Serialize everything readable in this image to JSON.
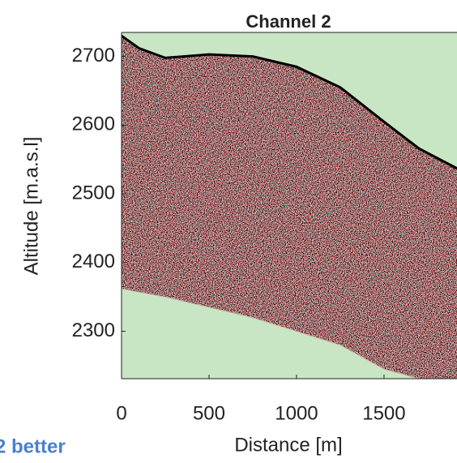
{
  "chart_data": {
    "type": "line",
    "title": "Channel 2",
    "x_label": "Distance [m]",
    "y_label": "Altitude [m.a.s.l]",
    "annotation": "2 better",
    "x": [
      0,
      100,
      250,
      500,
      750,
      1000,
      1250,
      1500,
      1700,
      1917
    ],
    "series": [
      {
        "color": "#000000",
        "values": [
          2730,
          2712,
          2698,
          2703,
          2700,
          2685,
          2655,
          2605,
          2566,
          2537
        ]
      },
      {
        "color": "#c9a9a0",
        "values": [
          2362,
          2357,
          2350,
          2335,
          2320,
          2300,
          2280,
          2245,
          2231,
          2231
        ]
      }
    ],
    "xlim": [
      0,
      1917
    ],
    "ylim": [
      2231,
      2735
    ],
    "xticks": [
      0,
      500,
      1000,
      1500
    ],
    "yticks": [
      2300,
      2400,
      2500,
      2600,
      2700
    ],
    "background": "#c8e6c3"
  }
}
